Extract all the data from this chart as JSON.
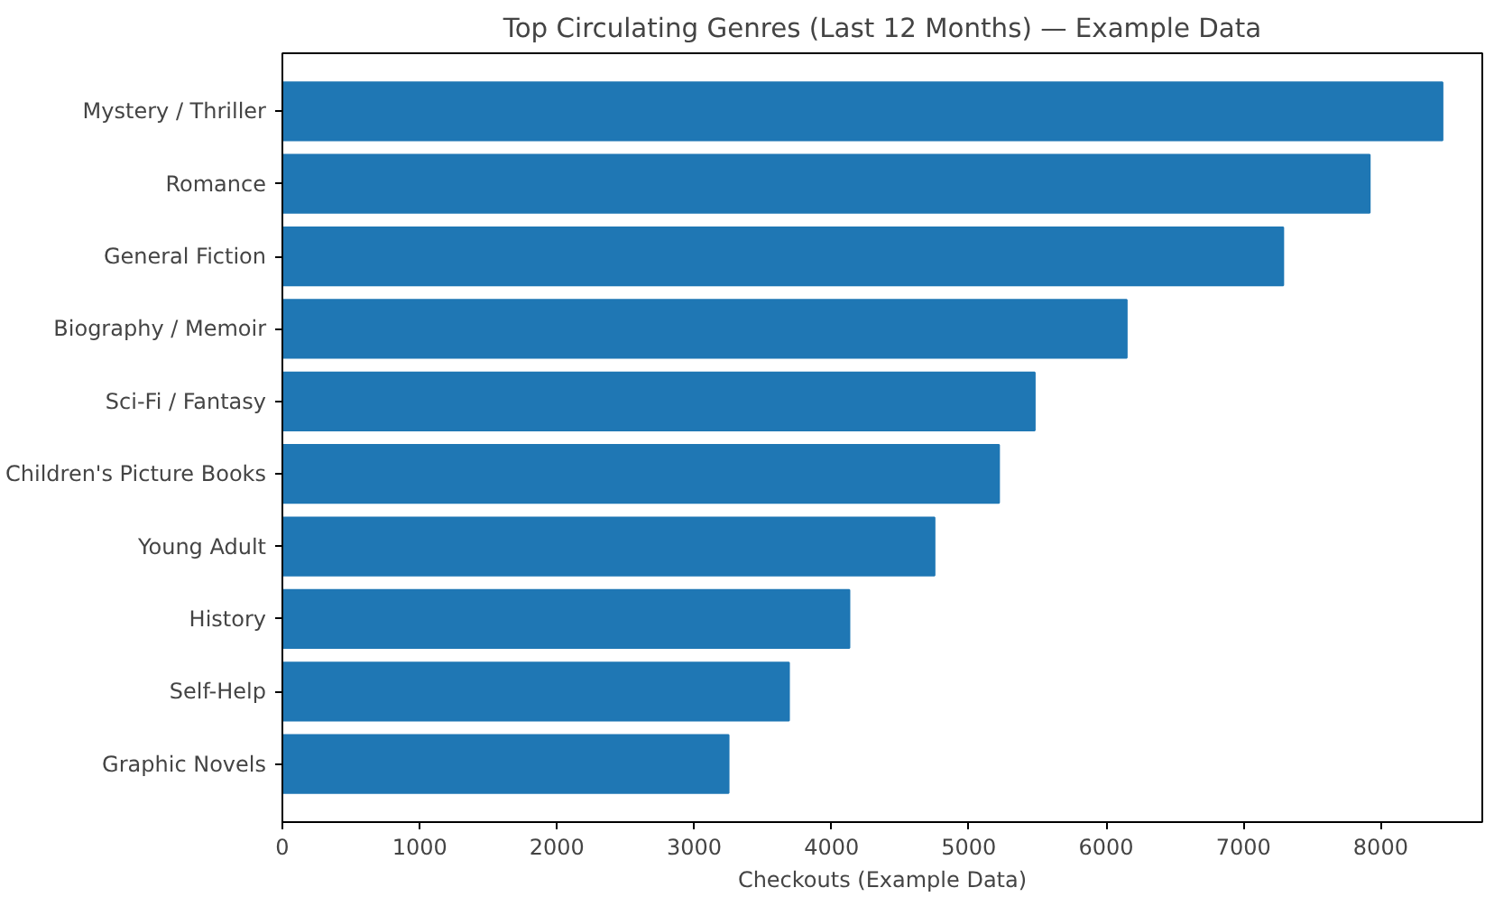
{
  "chart_data": {
    "type": "bar",
    "orientation": "horizontal",
    "title": "Top Circulating Genres (Last 12 Months) — Example Data",
    "xlabel": "Checkouts (Example Data)",
    "categories": [
      "Mystery / Thriller",
      "Romance",
      "General Fiction",
      "Biography / Memoir",
      "Sci-Fi / Fantasy",
      "Children's Picture Books",
      "Young Adult",
      "History",
      "Self-Help",
      "Graphic Novels"
    ],
    "values": [
      8450,
      7920,
      7290,
      6150,
      5480,
      5220,
      4750,
      4130,
      3690,
      3250
    ],
    "color": "#1f77b4",
    "xlim": [
      0,
      8740
    ],
    "xticks": [
      0,
      1000,
      2000,
      3000,
      4000,
      5000,
      6000,
      7000,
      8000
    ],
    "grid": false
  }
}
